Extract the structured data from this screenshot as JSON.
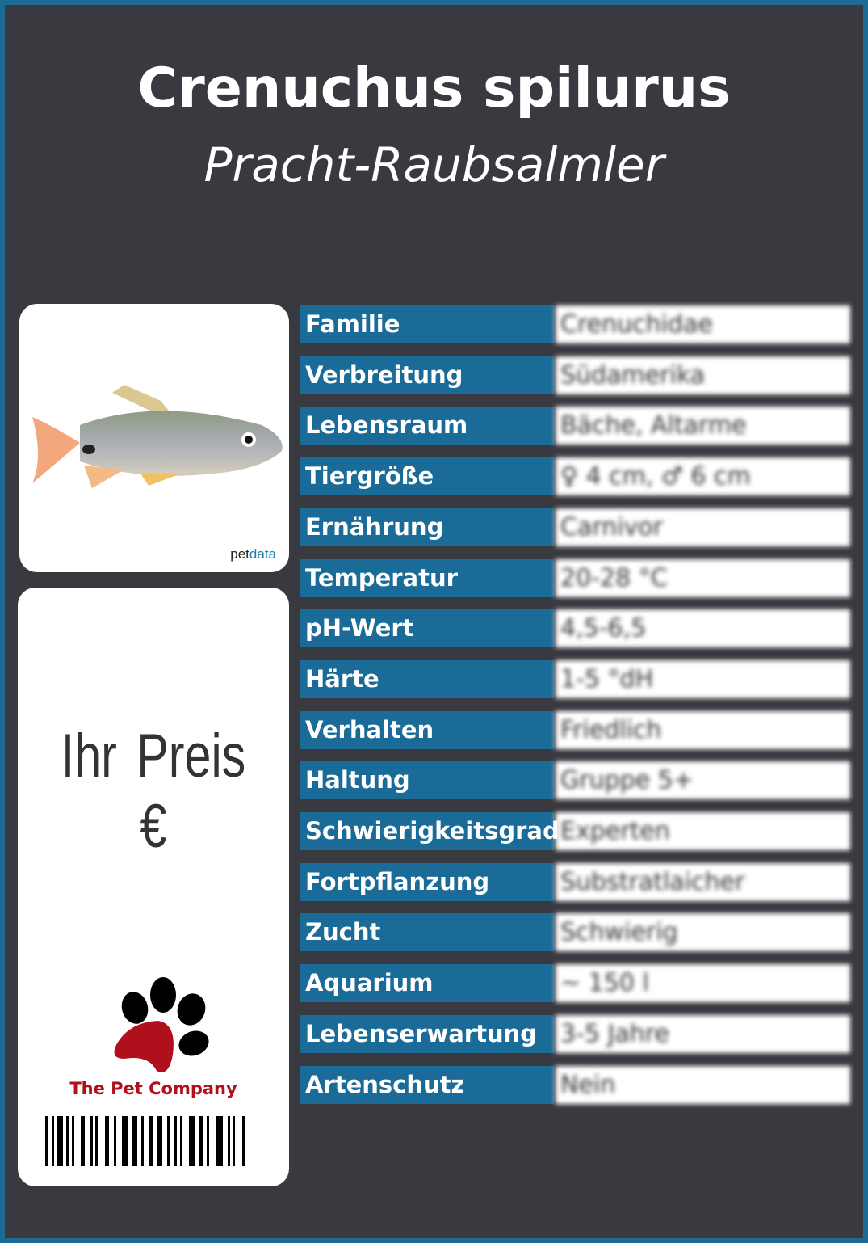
{
  "header": {
    "title": "Crenuchus spilurus",
    "subtitle": "Pracht-Raubsalmler"
  },
  "image_card": {
    "image": "fish-photo",
    "watermark_pet": "pet",
    "watermark_data": "data"
  },
  "price_card": {
    "price_label": "Ihr Preis €",
    "company": "The Pet Company",
    "logo": "paw-icon",
    "barcode": "barcode"
  },
  "colors": {
    "background": "#393a3f",
    "border": "#1c6b95",
    "label_bg": "#1a6b97",
    "company_red": "#b0101c"
  },
  "facts": [
    {
      "label": "Familie",
      "value": "Crenuchidae"
    },
    {
      "label": "Verbreitung",
      "value": "Südamerika"
    },
    {
      "label": "Lebensraum",
      "value": "Bäche, Altarme"
    },
    {
      "label": "Tiergröße",
      "value": "♀ 4 cm, ♂ 6 cm"
    },
    {
      "label": "Ernährung",
      "value": "Carnivor"
    },
    {
      "label": "Temperatur",
      "value": "20-28 °C"
    },
    {
      "label": "pH-Wert",
      "value": "4,5-6,5"
    },
    {
      "label": "Härte",
      "value": "1-5 °dH"
    },
    {
      "label": "Verhalten",
      "value": "Friedlich"
    },
    {
      "label": "Haltung",
      "value": "Gruppe 5+"
    },
    {
      "label": "Schwierigkeitsgrad",
      "value": "Experten"
    },
    {
      "label": "Fortpflanzung",
      "value": "Substratlaicher"
    },
    {
      "label": "Zucht",
      "value": "Schwierig"
    },
    {
      "label": "Aquarium",
      "value": "~ 150 l"
    },
    {
      "label": "Lebenserwartung",
      "value": "3-5 Jahre"
    },
    {
      "label": "Artenschutz",
      "value": "Nein"
    }
  ]
}
